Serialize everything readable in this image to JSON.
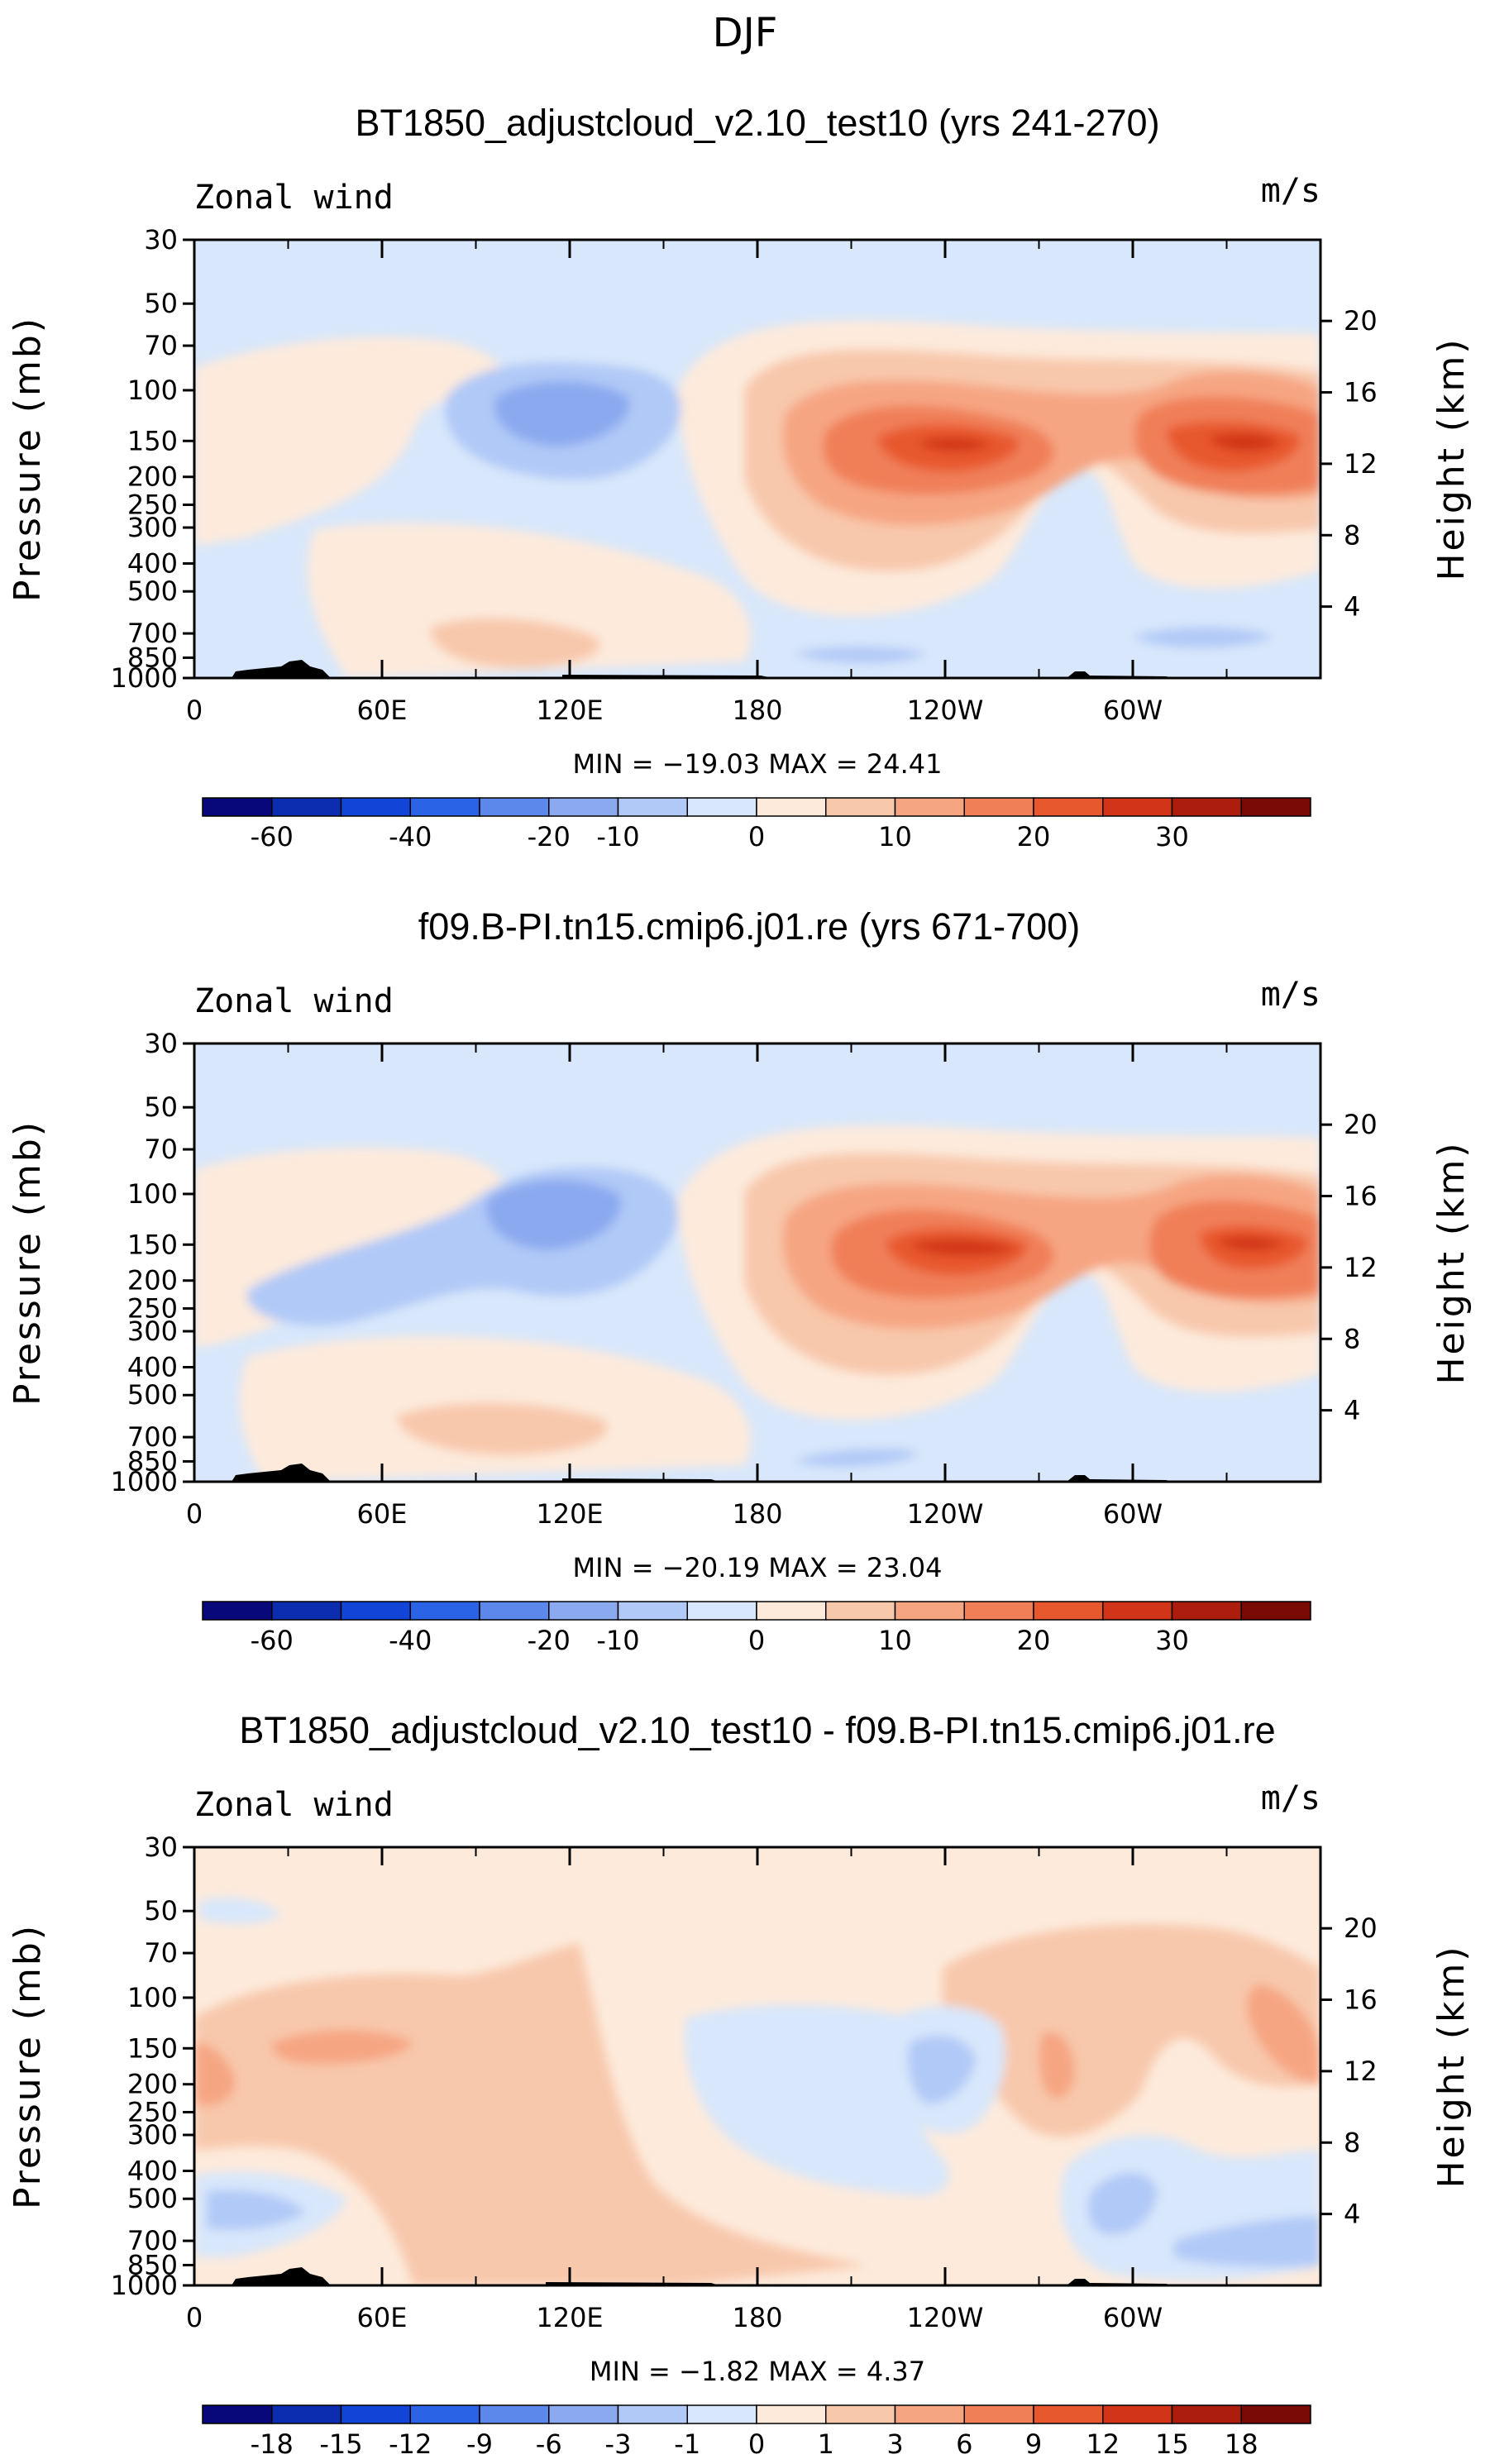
{
  "page": {
    "header": "DJF"
  },
  "chart_data": [
    {
      "type": "contour",
      "title": "BT1850_adjustcloud_v2.10_test10 (yrs 241-270)",
      "variable": "Zonal wind",
      "units": "m/s",
      "xlabel": "",
      "ylabel": "Pressure (mb)",
      "y2label": "Height (km)",
      "x_ticks": [
        "0",
        "60E",
        "120E",
        "180",
        "120W",
        "60W"
      ],
      "y_ticks": [
        "30",
        "50",
        "70",
        "100",
        "150",
        "200",
        "250",
        "300",
        "400",
        "500",
        "700",
        "850",
        "1000"
      ],
      "y2_ticks": [
        "20",
        "16",
        "12",
        "8",
        "4"
      ],
      "stats_text": "MIN = −19.03   MAX =  24.41",
      "min": -19.03,
      "max": 24.41,
      "colorbar": {
        "labels": [
          "-60",
          "-40",
          "-20",
          "-10",
          "0",
          "10",
          "20",
          "30"
        ],
        "colors": [
          "#08087a",
          "#0c2db0",
          "#1344d8",
          "#2a63e6",
          "#5b88ea",
          "#8aa9ef",
          "#b1c9f7",
          "#d8e7fb",
          "#fdeadb",
          "#f8c8ac",
          "#f6a582",
          "#f07f58",
          "#e8582f",
          "#d13418",
          "#ad1d0d",
          "#7a0a06"
        ]
      }
    },
    {
      "type": "contour",
      "title": "f09.B-PI.tn15.cmip6.j01.re (yrs 671-700)",
      "variable": "Zonal wind",
      "units": "m/s",
      "xlabel": "",
      "ylabel": "Pressure (mb)",
      "y2label": "Height (km)",
      "x_ticks": [
        "0",
        "60E",
        "120E",
        "180",
        "120W",
        "60W"
      ],
      "y_ticks": [
        "30",
        "50",
        "70",
        "100",
        "150",
        "200",
        "250",
        "300",
        "400",
        "500",
        "700",
        "850",
        "1000"
      ],
      "y2_ticks": [
        "20",
        "16",
        "12",
        "8",
        "4"
      ],
      "stats_text": "MIN = −20.19   MAX =  23.04",
      "min": -20.19,
      "max": 23.04,
      "colorbar": {
        "labels": [
          "-60",
          "-40",
          "-20",
          "-10",
          "0",
          "10",
          "20",
          "30"
        ],
        "colors": [
          "#08087a",
          "#0c2db0",
          "#1344d8",
          "#2a63e6",
          "#5b88ea",
          "#8aa9ef",
          "#b1c9f7",
          "#d8e7fb",
          "#fdeadb",
          "#f8c8ac",
          "#f6a582",
          "#f07f58",
          "#e8582f",
          "#d13418",
          "#ad1d0d",
          "#7a0a06"
        ]
      }
    },
    {
      "type": "contour",
      "title": "BT1850_adjustcloud_v2.10_test10 - f09.B-PI.tn15.cmip6.j01.re",
      "variable": "Zonal wind",
      "units": "m/s",
      "xlabel": "",
      "ylabel": "Pressure (mb)",
      "y2label": "Height (km)",
      "x_ticks": [
        "0",
        "60E",
        "120E",
        "180",
        "120W",
        "60W"
      ],
      "y_ticks": [
        "30",
        "50",
        "70",
        "100",
        "150",
        "200",
        "250",
        "300",
        "400",
        "500",
        "700",
        "850",
        "1000"
      ],
      "y2_ticks": [
        "20",
        "16",
        "12",
        "8",
        "4"
      ],
      "stats_text": "MIN =  −1.82   MAX =   4.37",
      "min": -1.82,
      "max": 4.37,
      "colorbar": {
        "labels": [
          "-18",
          "-15",
          "-12",
          "-9",
          "-6",
          "-3",
          "-1",
          "0",
          "1",
          "3",
          "6",
          "9",
          "12",
          "15",
          "18"
        ],
        "colors": [
          "#08087a",
          "#0c2db0",
          "#1344d8",
          "#2a63e6",
          "#5b88ea",
          "#8aa9ef",
          "#b1c9f7",
          "#d8e7fb",
          "#fdeadb",
          "#f8c8ac",
          "#f6a582",
          "#f07f58",
          "#e8582f",
          "#d13418",
          "#ad1d0d",
          "#7a0a06"
        ]
      }
    }
  ]
}
